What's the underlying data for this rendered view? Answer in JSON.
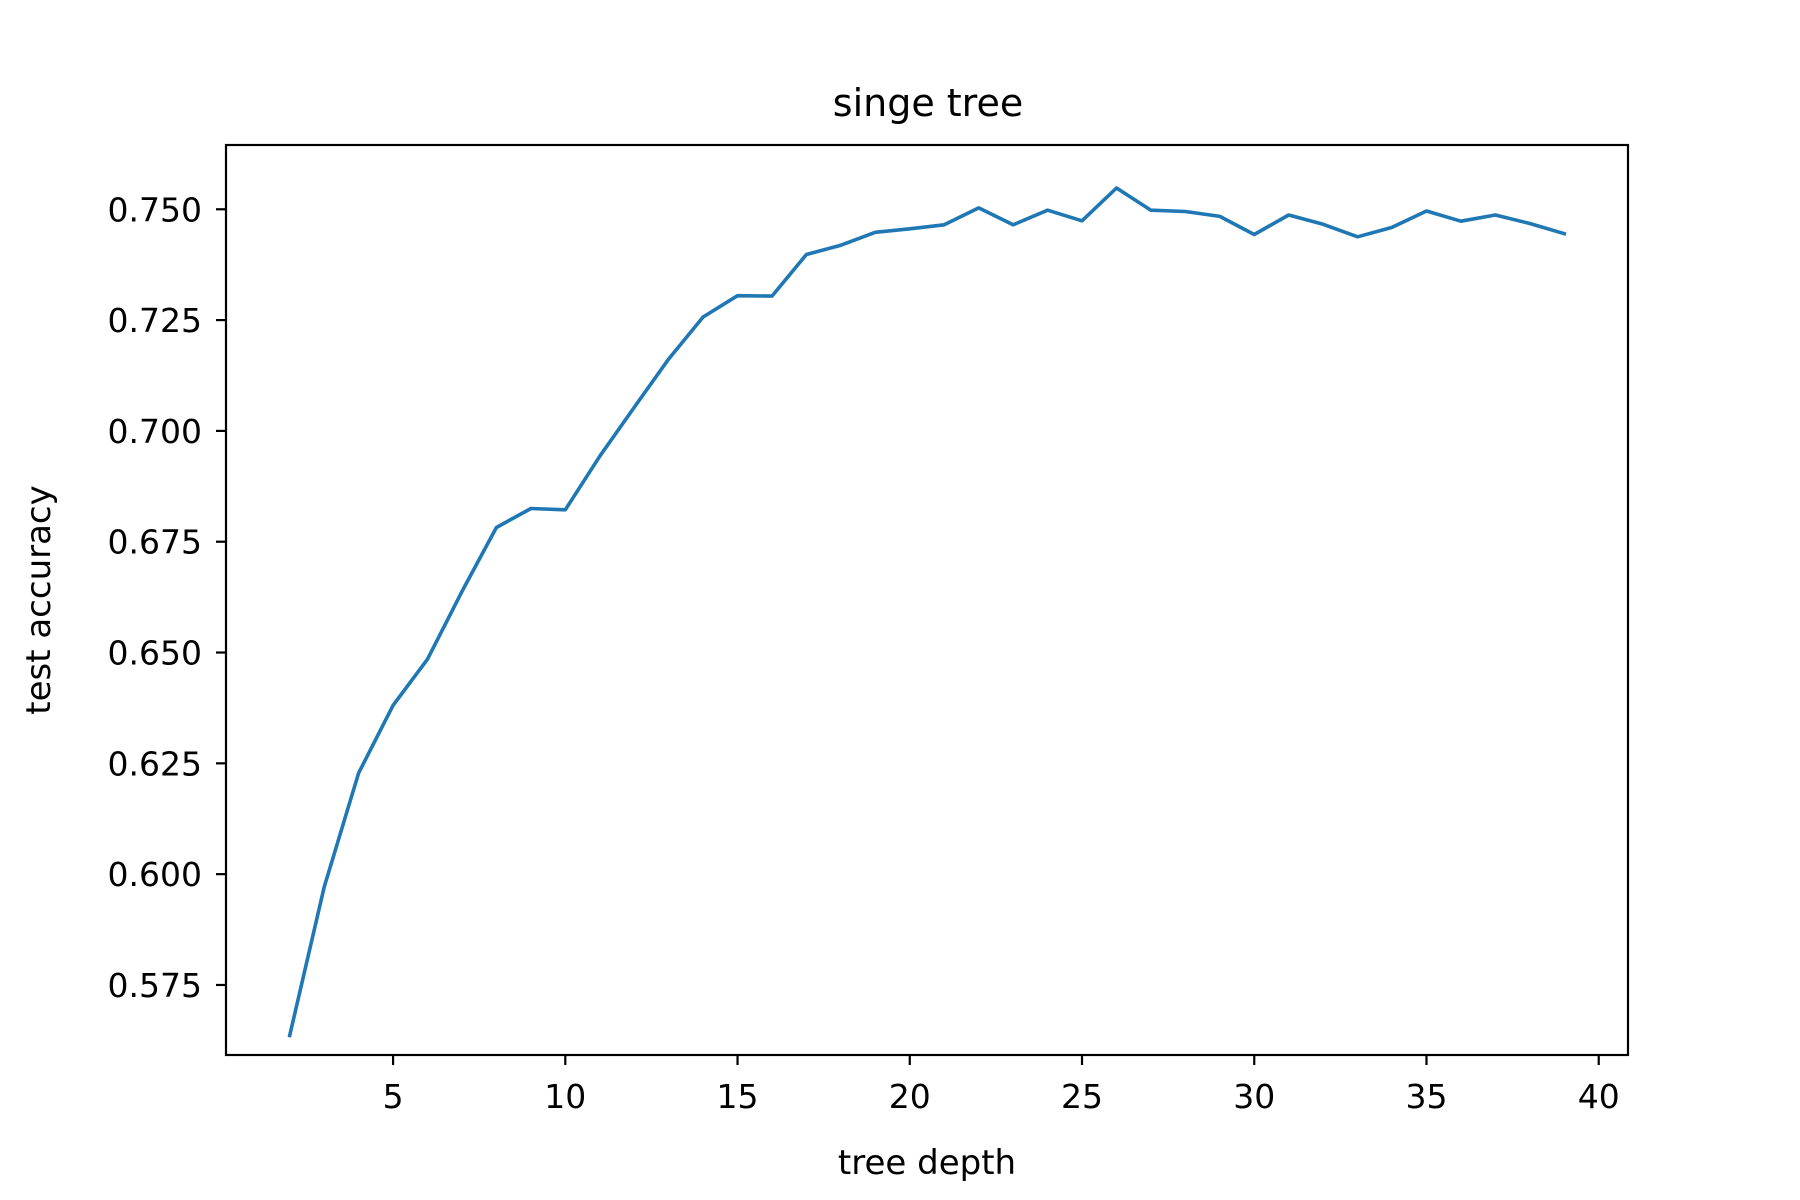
{
  "chart_data": {
    "type": "line",
    "title": "singe tree",
    "xlabel": "tree depth",
    "ylabel": "test accuracy",
    "xlim": [
      0.15,
      40.85
    ],
    "ylim": [
      0.5592,
      0.7645
    ],
    "xticks": [
      5,
      10,
      15,
      20,
      25,
      30,
      35,
      40
    ],
    "yticks": [
      0.575,
      0.6,
      0.625,
      0.65,
      0.675,
      0.7,
      0.725,
      0.75
    ],
    "xtick_labels": [
      "5",
      "10",
      "15",
      "20",
      "25",
      "30",
      "35",
      "40"
    ],
    "ytick_labels": [
      "0.575",
      "0.600",
      "0.625",
      "0.650",
      "0.675",
      "0.700",
      "0.725",
      "0.750"
    ],
    "grid": false,
    "series": [
      {
        "color": "#1f77b4",
        "x": [
          2,
          3,
          4,
          5,
          6,
          7,
          8,
          9,
          10,
          11,
          12,
          13,
          14,
          15,
          16,
          17,
          18,
          19,
          20,
          21,
          22,
          23,
          24,
          25,
          26,
          27,
          28,
          29,
          30,
          31,
          32,
          33,
          34,
          35,
          36,
          37,
          38,
          39
        ],
        "y": [
          0.5636,
          0.5971,
          0.6228,
          0.6381,
          0.6485,
          0.6638,
          0.6782,
          0.6825,
          0.6822,
          0.6943,
          0.7053,
          0.7162,
          0.7257,
          0.7305,
          0.7304,
          0.7398,
          0.7419,
          0.7448,
          0.7456,
          0.7465,
          0.7503,
          0.7465,
          0.7498,
          0.7474,
          0.7548,
          0.7498,
          0.7495,
          0.7484,
          0.7443,
          0.7487,
          0.7466,
          0.7438,
          0.7459,
          0.7496,
          0.7473,
          0.7487,
          0.7468,
          0.7445
        ]
      }
    ]
  }
}
